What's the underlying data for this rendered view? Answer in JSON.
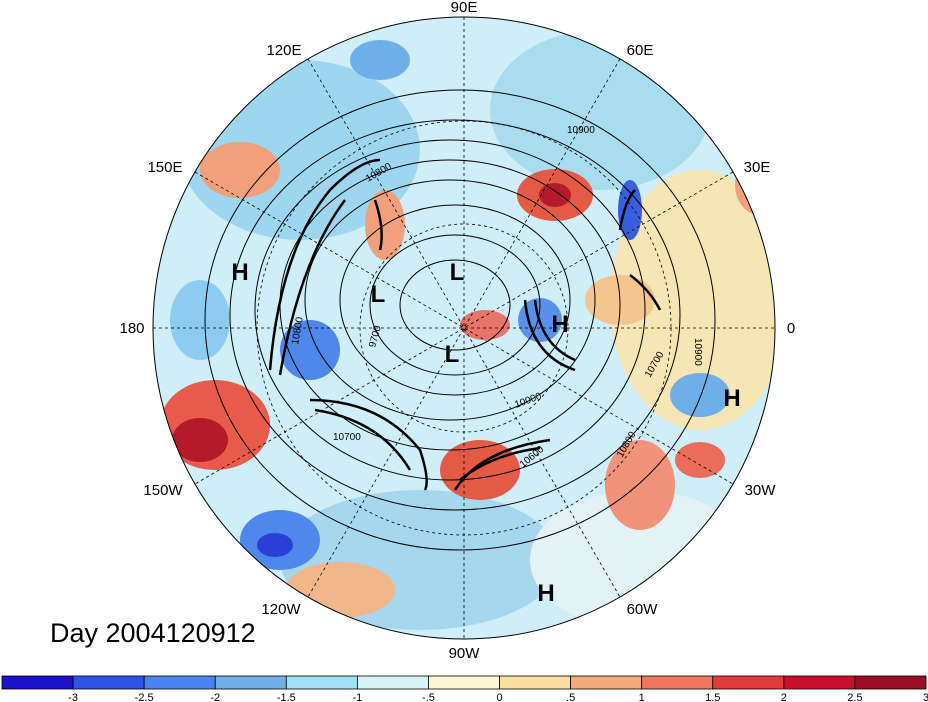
{
  "title": "Day 2004120912",
  "longitude_labels": {
    "e90": "90E",
    "e120": "120E",
    "e60": "60E",
    "e150": "150E",
    "e30": "30E",
    "w180": "180",
    "zero": "0",
    "w150": "150W",
    "w30": "30W",
    "w120": "120W",
    "w60": "60W",
    "w90": "90W"
  },
  "pressure_centers": [
    {
      "label": "H"
    },
    {
      "label": "L"
    },
    {
      "label": "L"
    },
    {
      "label": "H"
    },
    {
      "label": "L"
    },
    {
      "label": "H"
    },
    {
      "label": "H"
    }
  ],
  "contour_labels": [
    "10900",
    "10800",
    "9700",
    "10800",
    "10700",
    "10000",
    "10600",
    "10800",
    "10700",
    "10900"
  ],
  "colorbar": {
    "colors": [
      "#1c12c9",
      "#2d54e6",
      "#4a84f0",
      "#6fafe9",
      "#9fe0f5",
      "#d9f4f9",
      "#fdf7d3",
      "#fbdfa1",
      "#f4aa7a",
      "#f0775d",
      "#e33a3a",
      "#c9102a",
      "#9c0d23"
    ],
    "ticks": [
      "-3",
      "-2.5",
      "-2",
      "-1.5",
      "-1",
      "-.5",
      "0",
      ".5",
      "1",
      "1.5",
      "2",
      "2.5",
      "3"
    ]
  }
}
